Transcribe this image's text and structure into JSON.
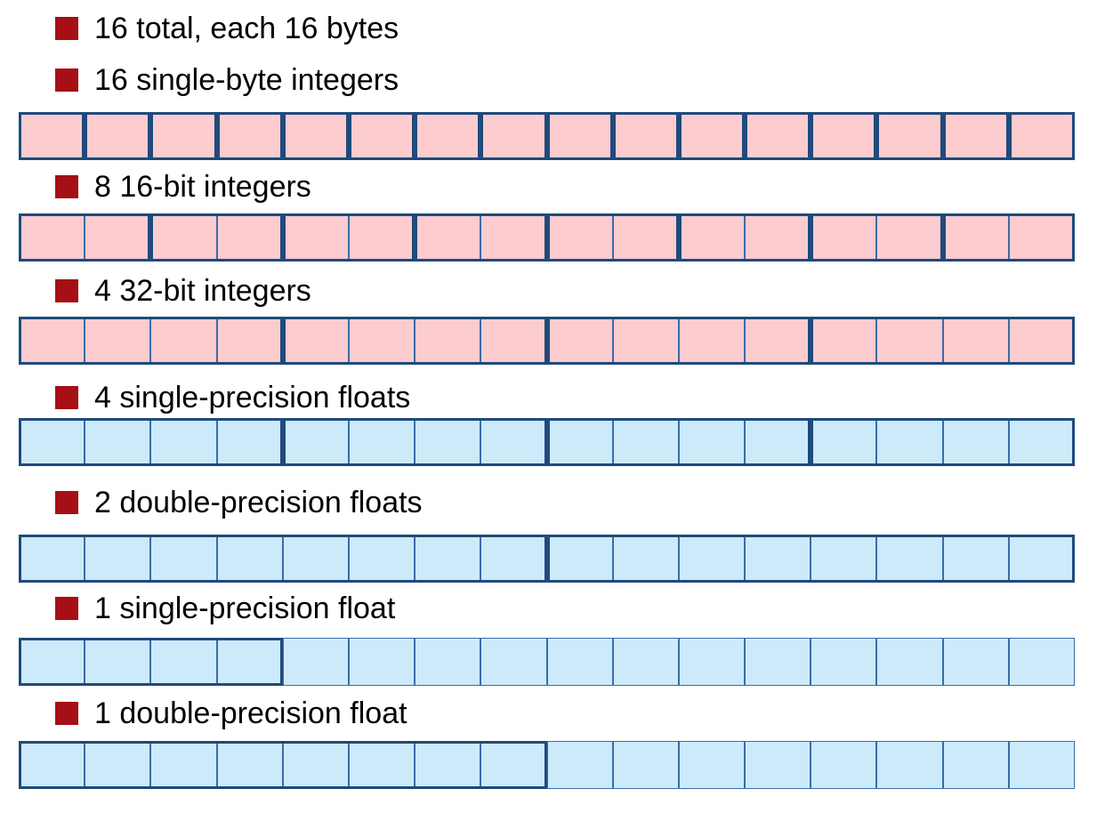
{
  "colors": {
    "bullet": "#a50f15",
    "int_fill": "#fccccf",
    "float_fill": "#cdeafb",
    "thin_border": "#3a6ca8",
    "thick_border": "#1f4a7c"
  },
  "rows": [
    {
      "label": "16 total, each 16 bytes",
      "register": null
    },
    {
      "label": "16 single-byte integers",
      "register": {
        "fill": "int",
        "lane_bytes": 1,
        "lanes": 16
      }
    },
    {
      "label": "8 16-bit integers",
      "register": {
        "fill": "int",
        "lane_bytes": 2,
        "lanes": 8
      }
    },
    {
      "label": "4 32-bit integers",
      "register": {
        "fill": "int",
        "lane_bytes": 4,
        "lanes": 4
      }
    },
    {
      "label": "4 single-precision floats",
      "register": {
        "fill": "float",
        "lane_bytes": 4,
        "lanes": 4
      }
    },
    {
      "label": "2 double-precision floats",
      "register": {
        "fill": "float",
        "lane_bytes": 8,
        "lanes": 2
      }
    },
    {
      "label": "1 single-precision float",
      "register": {
        "fill": "float",
        "lane_bytes": 4,
        "lanes": 1
      }
    },
    {
      "label": "1 double-precision float",
      "register": {
        "fill": "float",
        "lane_bytes": 8,
        "lanes": 1
      }
    }
  ]
}
